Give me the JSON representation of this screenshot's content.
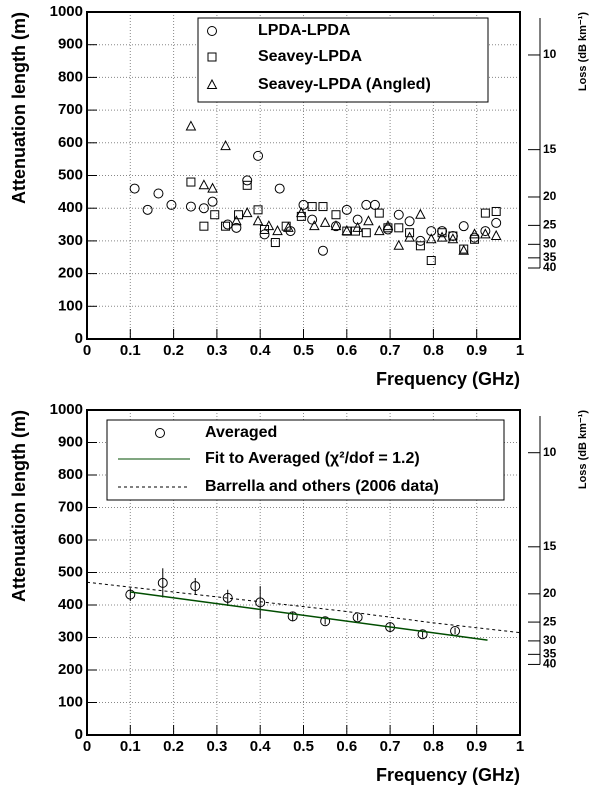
{
  "chart_data": [
    {
      "type": "scatter",
      "x_label": "Frequency (GHz)",
      "y_label": "Attenuation length (m)",
      "y2_label": "Loss (dB km⁻¹)",
      "xlim": [
        0,
        1
      ],
      "xticks": [
        0,
        0.1,
        0.2,
        0.3,
        0.4,
        0.5,
        0.6,
        0.7,
        0.8,
        0.9,
        1
      ],
      "ylim": [
        0,
        1000
      ],
      "yticks": [
        0,
        100,
        200,
        300,
        400,
        500,
        600,
        700,
        800,
        900,
        1000
      ],
      "y2ticks": [
        10,
        15,
        20,
        25,
        30,
        35,
        40
      ],
      "y2_scale": "inverse",
      "y2_constant": 8686,
      "grid": true,
      "legend": "top",
      "series": [
        {
          "name": "LPDA-LPDA",
          "marker": "circle",
          "color": "#000000",
          "x": [
            0.11,
            0.14,
            0.165,
            0.195,
            0.24,
            0.27,
            0.29,
            0.325,
            0.345,
            0.37,
            0.395,
            0.41,
            0.445,
            0.47,
            0.5,
            0.52,
            0.545,
            0.575,
            0.6,
            0.625,
            0.645,
            0.665,
            0.695,
            0.72,
            0.745,
            0.77,
            0.795,
            0.82,
            0.845,
            0.87,
            0.895,
            0.92,
            0.945
          ],
          "values": [
            460,
            395,
            445,
            410,
            405,
            400,
            420,
            350,
            340,
            485,
            560,
            320,
            460,
            330,
            410,
            365,
            270,
            345,
            395,
            365,
            410,
            410,
            335,
            380,
            360,
            300,
            330,
            330,
            315,
            345,
            310,
            330,
            355
          ]
        },
        {
          "name": "Seavey-LPDA",
          "marker": "square",
          "color": "#000000",
          "x": [
            0.24,
            0.27,
            0.295,
            0.32,
            0.35,
            0.37,
            0.395,
            0.41,
            0.435,
            0.46,
            0.495,
            0.52,
            0.545,
            0.575,
            0.6,
            0.62,
            0.645,
            0.675,
            0.695,
            0.72,
            0.745,
            0.77,
            0.795,
            0.82,
            0.845,
            0.87,
            0.895,
            0.92,
            0.945
          ],
          "values": [
            480,
            345,
            380,
            345,
            380,
            470,
            395,
            335,
            295,
            345,
            375,
            405,
            405,
            380,
            330,
            330,
            325,
            385,
            340,
            340,
            325,
            285,
            240,
            325,
            315,
            275,
            305,
            385,
            390
          ]
        },
        {
          "name": "Seavey-LPDA (Angled)",
          "marker": "triangle",
          "color": "#000000",
          "x": [
            0.24,
            0.27,
            0.29,
            0.32,
            0.345,
            0.37,
            0.395,
            0.42,
            0.44,
            0.465,
            0.495,
            0.525,
            0.55,
            0.575,
            0.6,
            0.625,
            0.65,
            0.675,
            0.695,
            0.72,
            0.745,
            0.77,
            0.795,
            0.82,
            0.845,
            0.87,
            0.895,
            0.92,
            0.945
          ],
          "values": [
            650,
            470,
            460,
            590,
            360,
            385,
            360,
            345,
            330,
            340,
            385,
            345,
            355,
            345,
            330,
            340,
            360,
            330,
            345,
            285,
            310,
            380,
            305,
            310,
            305,
            270,
            320,
            320,
            315
          ]
        }
      ]
    },
    {
      "type": "scatter",
      "x_label": "Frequency (GHz)",
      "y_label": "Attenuation length (m)",
      "y2_label": "Loss (dB km⁻¹)",
      "xlim": [
        0,
        1
      ],
      "xticks": [
        0,
        0.1,
        0.2,
        0.3,
        0.4,
        0.5,
        0.6,
        0.7,
        0.8,
        0.9,
        1
      ],
      "ylim": [
        0,
        1000
      ],
      "yticks": [
        0,
        100,
        200,
        300,
        400,
        500,
        600,
        700,
        800,
        900,
        1000
      ],
      "y2ticks": [
        10,
        15,
        20,
        25,
        30,
        35,
        40
      ],
      "y2_scale": "inverse",
      "y2_constant": 8686,
      "grid": true,
      "legend": "top",
      "series": [
        {
          "name": "Averaged",
          "marker": "circle",
          "color": "#000000",
          "x": [
            0.1,
            0.175,
            0.25,
            0.325,
            0.4,
            0.475,
            0.55,
            0.625,
            0.7,
            0.775,
            0.85
          ],
          "values": [
            432,
            468,
            458,
            422,
            408,
            365,
            350,
            362,
            332,
            310,
            320
          ],
          "errors": [
            20,
            45,
            25,
            25,
            50,
            15,
            10,
            10,
            15,
            10,
            10
          ]
        },
        {
          "name": "Fit to Averaged (χ²/dof = 1.2)",
          "style": "solid",
          "color": "#004d00",
          "x": [
            0.1,
            0.925
          ],
          "values": [
            440,
            292
          ]
        },
        {
          "name": "Barrella and others (2006 data)",
          "style": "dashed",
          "color": "#000000",
          "x": [
            0,
            0.2,
            0.4,
            0.6,
            0.8,
            1
          ],
          "values": [
            470,
            440,
            410,
            380,
            345,
            315
          ]
        }
      ]
    }
  ]
}
